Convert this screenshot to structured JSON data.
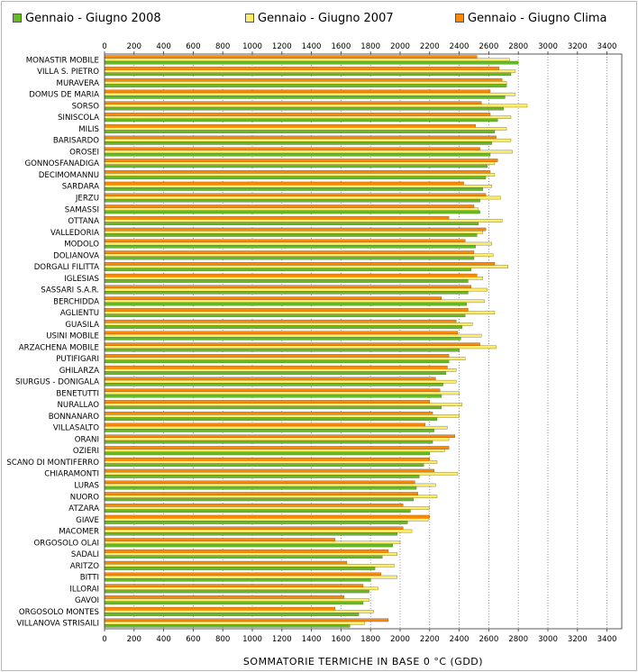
{
  "legend": [
    {
      "label": "Gennaio - Giugno 2008",
      "color": "#66bb22"
    },
    {
      "label": "Gennaio - Giugno 2007",
      "color": "#ffee66"
    },
    {
      "label": "Gennaio - Giugno Clima",
      "color": "#ff8800"
    }
  ],
  "chart_data": {
    "type": "bar",
    "orientation": "horizontal",
    "xlabel": "SOMMATORIE TERMICHE IN BASE 0 °C (GDD)",
    "xlim": [
      0,
      3500
    ],
    "xticks": [
      0,
      200,
      400,
      600,
      800,
      1000,
      1200,
      1400,
      1600,
      1800,
      2000,
      2200,
      2400,
      2600,
      2800,
      3000,
      3200,
      3400
    ],
    "grid": "vertical dotted",
    "legend_position": "top",
    "categories": [
      "MONASTIR MOBILE",
      "VILLA S. PIETRO",
      "MURAVERA",
      "DOMUS DE MARIA",
      "SORSO",
      "SINISCOLA",
      "MILIS",
      "BARISARDO",
      "OROSEI",
      "GONNOSFANADIGA",
      "DECIMOMANNU",
      "SARDARA",
      "JERZU",
      "SAMASSI",
      "OTTANA",
      "VALLEDORIA",
      "MODOLO",
      "DOLIANOVA",
      "DORGALI FILITTA",
      "IGLESIAS",
      "SASSARI S.A.R.",
      "BERCHIDDA",
      "AGLIENTU",
      "GUASILA",
      "USINI MOBILE",
      "ARZACHENA MOBILE",
      "PUTIFIGARI",
      "GHILARZA",
      "SIURGUS - DONIGALA",
      "BENETUTTI",
      "NURALLAO",
      "BONNANARO",
      "VILLASALTO",
      "ORANI",
      "OZIERI",
      "SCANO DI MONTIFERRO",
      "CHIARAMONTI",
      "LURAS",
      "NUORO",
      "ATZARA",
      "GIAVE",
      "MACOMER",
      "ORGOSOLO OLAI",
      "SADALI",
      "ARITZO",
      "BITTI",
      "ILLORAI",
      "GAVOI",
      "ORGOSOLO MONTES",
      "VILLANOVA STRISAILI"
    ],
    "series": [
      {
        "name": "Gennaio - Giugno 2008",
        "color": "#66bb22",
        "values": [
          2800,
          2750,
          2720,
          2710,
          2700,
          2660,
          2640,
          2620,
          2610,
          2590,
          2580,
          2560,
          2540,
          2540,
          2530,
          2520,
          2510,
          2500,
          2480,
          2460,
          2460,
          2450,
          2440,
          2420,
          2410,
          2400,
          2330,
          2310,
          2290,
          2280,
          2280,
          2250,
          2230,
          2220,
          2200,
          2160,
          2130,
          2110,
          2090,
          2070,
          2050,
          1980,
          1950,
          1880,
          1830,
          1800,
          1790,
          1750,
          1720,
          1660
        ]
      },
      {
        "name": "Gennaio - Giugno 2007",
        "color": "#ffee66",
        "values": [
          2740,
          2780,
          2720,
          2780,
          2860,
          2750,
          2720,
          2750,
          2760,
          2640,
          2640,
          2620,
          2680,
          2530,
          2690,
          2560,
          2620,
          2630,
          2730,
          2560,
          2590,
          2570,
          2640,
          2490,
          2550,
          2650,
          2440,
          2380,
          2380,
          2400,
          2420,
          2400,
          2320,
          2330,
          2300,
          2250,
          2390,
          2240,
          2250,
          2200,
          2190,
          2080,
          2000,
          1980,
          1960,
          1980,
          1850,
          1790,
          1820,
          1760
        ]
      },
      {
        "name": "Gennaio - Giugno Clima",
        "color": "#ff8800",
        "values": [
          2520,
          2670,
          2690,
          2610,
          2550,
          2610,
          2510,
          2650,
          2540,
          2660,
          2610,
          2430,
          2580,
          2500,
          2330,
          2580,
          2440,
          2500,
          2640,
          2520,
          2480,
          2280,
          2460,
          2380,
          2390,
          2540,
          2330,
          2320,
          2240,
          2270,
          2200,
          2220,
          2170,
          2370,
          2330,
          2200,
          2230,
          2100,
          2120,
          2020,
          2200,
          2020,
          1560,
          1920,
          1640,
          1870,
          1750,
          1620,
          1560,
          1920
        ]
      }
    ]
  }
}
